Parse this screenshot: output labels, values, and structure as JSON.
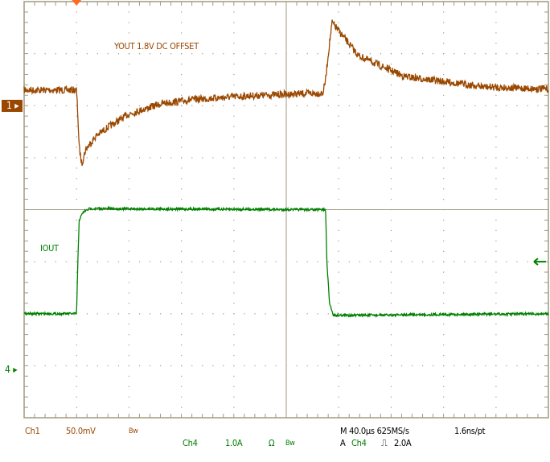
{
  "annotations": {
    "ch1_label": "YOUT 1.8V DC OFFSET",
    "ch4_label": "IOUT"
  },
  "markers": {
    "ch1": "1",
    "ch4": "4"
  },
  "colors": {
    "ch1": "#9a4800",
    "ch4": "#008000",
    "grid": "#a09a80",
    "trigger_pos": "#ff6a20"
  },
  "status": {
    "ch1_name": "Ch1",
    "ch1_scale": "50.0mV",
    "ch1_bw": "Bw",
    "ch4_name": "Ch4",
    "ch4_scale": "1.0A",
    "ch4_coupling": "Ω",
    "ch4_bw": "Bw",
    "timebase": "M 40.0µs 625MS/s",
    "resolution": "1.6ns/pt",
    "trigger_source_prefix": "A",
    "trigger_source": "Ch4",
    "trigger_slope": "⎍",
    "trigger_level": "2.0A"
  },
  "chart_data": {
    "type": "line",
    "title": "",
    "xlabel": "",
    "ylabel": "",
    "x_unit": "µs",
    "xlim": [
      -40,
      360
    ],
    "x_div": 40,
    "divisions": {
      "x": 10,
      "y": 8
    },
    "grid": true,
    "trigger_time": 0,
    "trigger_level": 2.0,
    "series": [
      {
        "name": "YOUT 1.8V DC OFFSET",
        "channel": "Ch1",
        "unit": "mV",
        "scale_per_div": 50,
        "ylim": [
          -300,
          100
        ],
        "t": [
          -40,
          0,
          1,
          2,
          4,
          7,
          15,
          25,
          40,
          65,
          90,
          126,
          160,
          188,
          190,
          193,
          195,
          200,
          215,
          250,
          312,
          400
        ],
        "y": [
          15,
          15,
          -10,
          -40,
          -56,
          -42,
          -29,
          -20,
          -8,
          2,
          6,
          9,
          11,
          12,
          25,
          60,
          80,
          72,
          48,
          28,
          18,
          14
        ]
      },
      {
        "name": "IOUT",
        "channel": "Ch4",
        "unit": "A",
        "scale_per_div": 1.0,
        "ylim": [
          -1,
          7
        ],
        "t": [
          -40,
          0,
          1,
          2,
          5,
          10,
          190,
          191,
          193,
          196,
          220,
          300,
          400
        ],
        "y": [
          1.0,
          1.0,
          2.0,
          2.8,
          2.95,
          3.02,
          3.0,
          2.0,
          1.2,
          0.97,
          0.97,
          0.99,
          1.0
        ]
      }
    ]
  }
}
